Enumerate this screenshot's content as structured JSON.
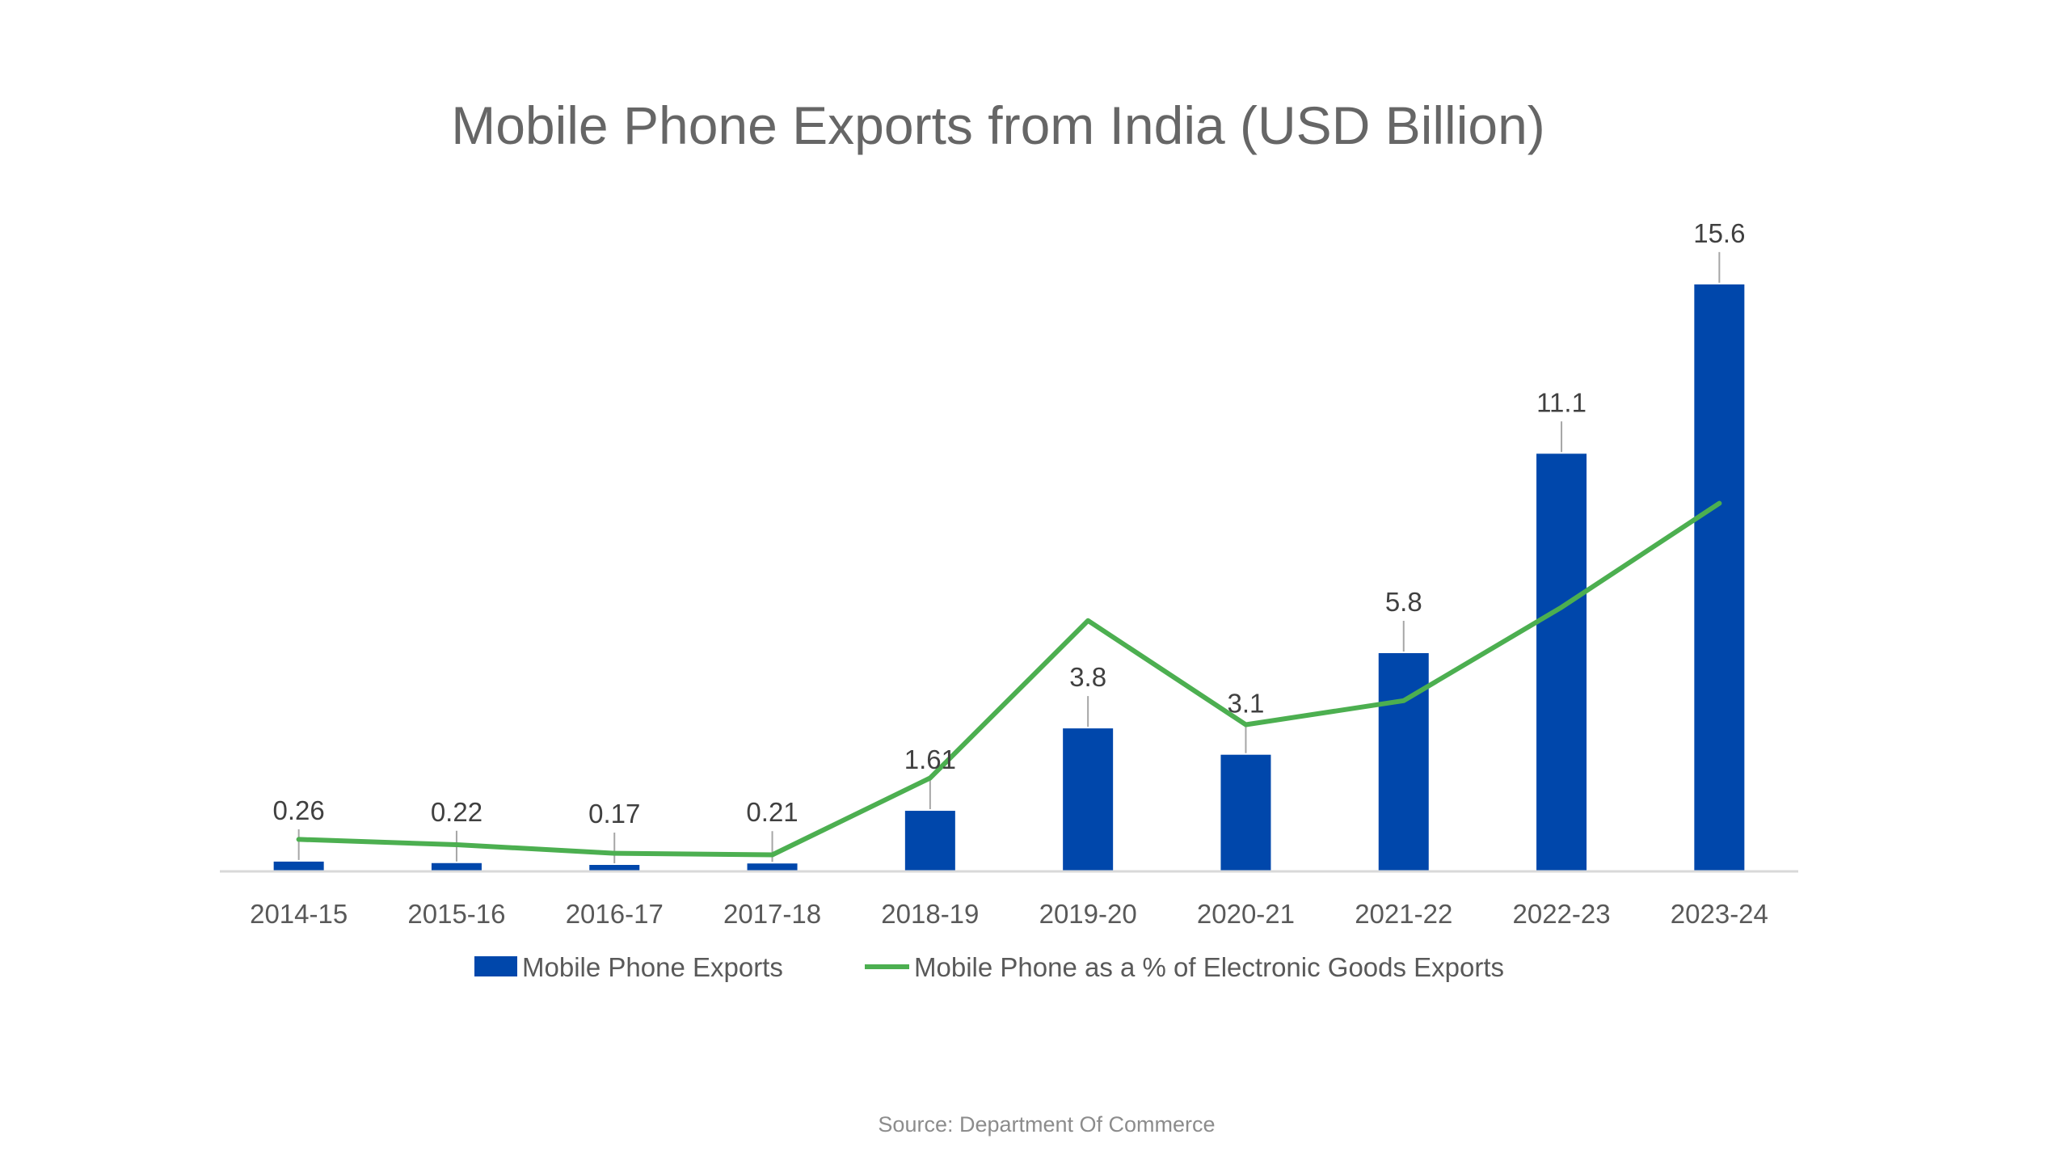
{
  "chart_data": {
    "type": "bar",
    "title": "Mobile Phone Exports from India (USD Billion)",
    "xlabel": "",
    "ylabel": "",
    "categories": [
      "2014-15",
      "2015-16",
      "2016-17",
      "2017-18",
      "2018-19",
      "2019-20",
      "2020-21",
      "2021-22",
      "2022-23",
      "2023-24"
    ],
    "series": [
      {
        "name": "Mobile Phone Exports",
        "type": "bar",
        "color": "#0047AB",
        "values": [
          0.26,
          0.22,
          0.17,
          0.21,
          1.61,
          3.8,
          3.1,
          5.8,
          11.1,
          15.6
        ],
        "data_labels": [
          "0.26",
          "0.22",
          "0.17",
          "0.21",
          "1.61",
          "3.8",
          "3.1",
          "5.8",
          "11.1",
          "15.6"
        ]
      },
      {
        "name": "Mobile Phone as a % of Electronic Goods Exports",
        "type": "line",
        "color": "#4CAF50",
        "values": [
          0.6,
          0.5,
          0.34,
          0.31,
          1.75,
          4.7,
          2.75,
          3.2,
          4.95,
          6.9
        ]
      }
    ],
    "ylim": [
      0,
      16
    ],
    "grid": false,
    "legend_position": "bottom"
  },
  "source": "Source: Department Of Commerce"
}
